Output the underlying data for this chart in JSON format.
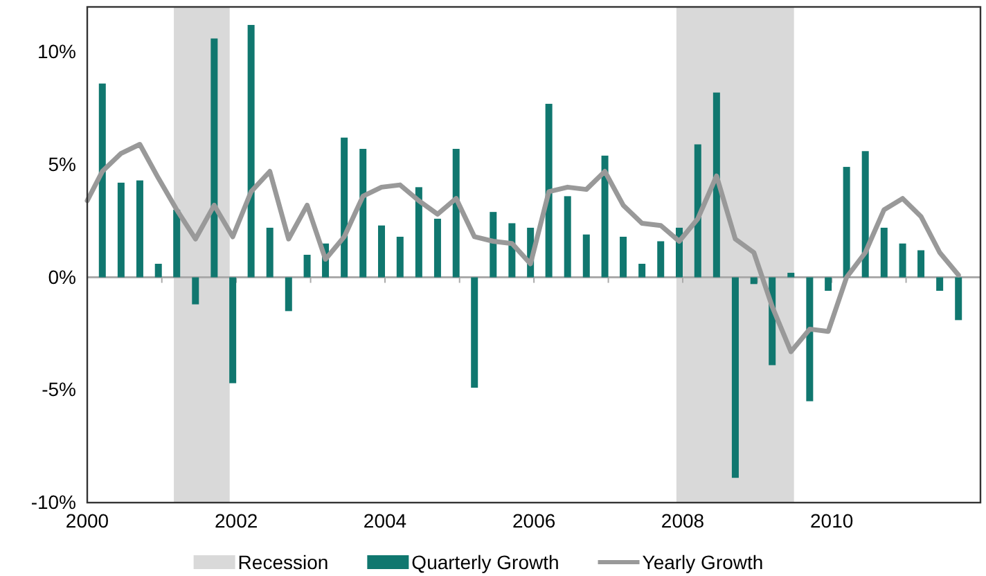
{
  "chart_data": {
    "type": "bar",
    "x": [
      "2000-03-15",
      "2000-06-15",
      "2000-09-15",
      "2000-12-15",
      "2001-03-15",
      "2001-06-15",
      "2001-09-15",
      "2001-12-15",
      "2002-03-15",
      "2002-06-15",
      "2002-09-15",
      "2002-12-15",
      "2003-03-15",
      "2003-06-15",
      "2003-09-15",
      "2003-12-15",
      "2004-03-15",
      "2004-06-15",
      "2004-09-15",
      "2004-12-15",
      "2005-03-15",
      "2005-06-15",
      "2005-09-15",
      "2005-12-15",
      "2006-03-15",
      "2006-06-15",
      "2006-09-15",
      "2006-12-15",
      "2007-03-15",
      "2007-06-15",
      "2007-09-15",
      "2007-12-15",
      "2008-03-15",
      "2008-06-15",
      "2008-09-15",
      "2008-12-15",
      "2009-03-15",
      "2009-06-15",
      "2009-09-15",
      "2009-12-15",
      "2010-03-15",
      "2010-06-15",
      "2010-09-15",
      "2010-12-15",
      "2011-03-15",
      "2011-06-15",
      "2011-09-15"
    ],
    "series": [
      {
        "name": "Quarterly Growth",
        "color": "#10776f",
        "values": [
          8.6,
          4.2,
          4.3,
          0.6,
          3.0,
          -1.2,
          10.6,
          -4.7,
          11.2,
          2.2,
          -1.5,
          1.0,
          1.5,
          6.2,
          5.7,
          2.3,
          1.8,
          4.0,
          2.6,
          5.7,
          -4.9,
          2.9,
          2.4,
          2.2,
          7.7,
          3.6,
          1.9,
          5.4,
          1.8,
          0.6,
          1.6,
          2.2,
          5.9,
          8.2,
          -8.9,
          -0.3,
          -3.9,
          0.2,
          -5.5,
          -0.6,
          4.9,
          5.6,
          2.2,
          1.5,
          1.2,
          -0.6,
          -1.9
        ]
      },
      {
        "name": "Yearly Growth",
        "type": "line",
        "color": "#999999",
        "x": [
          "2000-01-01",
          "2000-03-15",
          "2000-06-15",
          "2000-09-15",
          "2000-12-15",
          "2001-03-15",
          "2001-06-15",
          "2001-09-15",
          "2001-12-15",
          "2002-03-15",
          "2002-06-15",
          "2002-09-15",
          "2002-12-15",
          "2003-03-15",
          "2003-06-15",
          "2003-09-15",
          "2003-12-15",
          "2004-03-15",
          "2004-06-15",
          "2004-09-15",
          "2004-12-15",
          "2005-03-15",
          "2005-06-15",
          "2005-09-15",
          "2005-12-15",
          "2006-03-15",
          "2006-06-15",
          "2006-09-15",
          "2006-12-15",
          "2007-03-15",
          "2007-06-15",
          "2007-09-15",
          "2007-12-15",
          "2008-03-15",
          "2008-06-15",
          "2008-09-15",
          "2008-12-15",
          "2009-03-15",
          "2009-06-15",
          "2009-09-15",
          "2009-12-15",
          "2010-03-15",
          "2010-06-15",
          "2010-09-15",
          "2010-12-15",
          "2011-03-15",
          "2011-06-15",
          "2011-09-15"
        ],
        "values": [
          3.4,
          4.7,
          5.5,
          5.9,
          4.4,
          3.0,
          1.7,
          3.2,
          1.8,
          3.8,
          4.7,
          1.7,
          3.2,
          0.8,
          1.8,
          3.6,
          4.0,
          4.1,
          3.4,
          2.8,
          3.5,
          1.8,
          1.6,
          1.5,
          0.6,
          3.8,
          4.0,
          3.9,
          4.7,
          3.2,
          2.4,
          2.3,
          1.6,
          2.6,
          4.5,
          1.7,
          1.1,
          -1.3,
          -3.3,
          -2.3,
          -2.4,
          0.0,
          1.1,
          3.0,
          3.5,
          2.7,
          1.1,
          0.1
        ]
      }
    ],
    "bands": [
      {
        "axis": "x",
        "from": "2001-03-01",
        "to": "2001-11-30",
        "label": "Recession",
        "color": "#d9d9d9"
      },
      {
        "axis": "x",
        "from": "2007-12-01",
        "to": "2009-06-30",
        "color": "#d9d9d9"
      }
    ],
    "xlim": [
      "2000-01-01",
      "2012-01-01"
    ],
    "xticks": [
      {
        "value": "2000-01-01",
        "label": "2000"
      },
      {
        "value": "2001-01-01",
        "label": null
      },
      {
        "value": "2002-01-01",
        "label": "2002"
      },
      {
        "value": "2003-01-01",
        "label": null
      },
      {
        "value": "2004-01-01",
        "label": "2004"
      },
      {
        "value": "2005-01-01",
        "label": null
      },
      {
        "value": "2006-01-01",
        "label": "2006"
      },
      {
        "value": "2007-01-01",
        "label": null
      },
      {
        "value": "2008-01-01",
        "label": "2008"
      },
      {
        "value": "2009-01-01",
        "label": null
      },
      {
        "value": "2010-01-01",
        "label": "2010"
      },
      {
        "value": "2011-01-01",
        "label": null
      }
    ],
    "ylim": [
      -10,
      12
    ],
    "yticks": [
      {
        "value": -10,
        "label": "-10%"
      },
      {
        "value": -5,
        "label": "-5%"
      },
      {
        "value": 0,
        "label": "0%"
      },
      {
        "value": 5,
        "label": "5%"
      },
      {
        "value": 10,
        "label": "10%"
      }
    ],
    "legend": "bottom"
  }
}
